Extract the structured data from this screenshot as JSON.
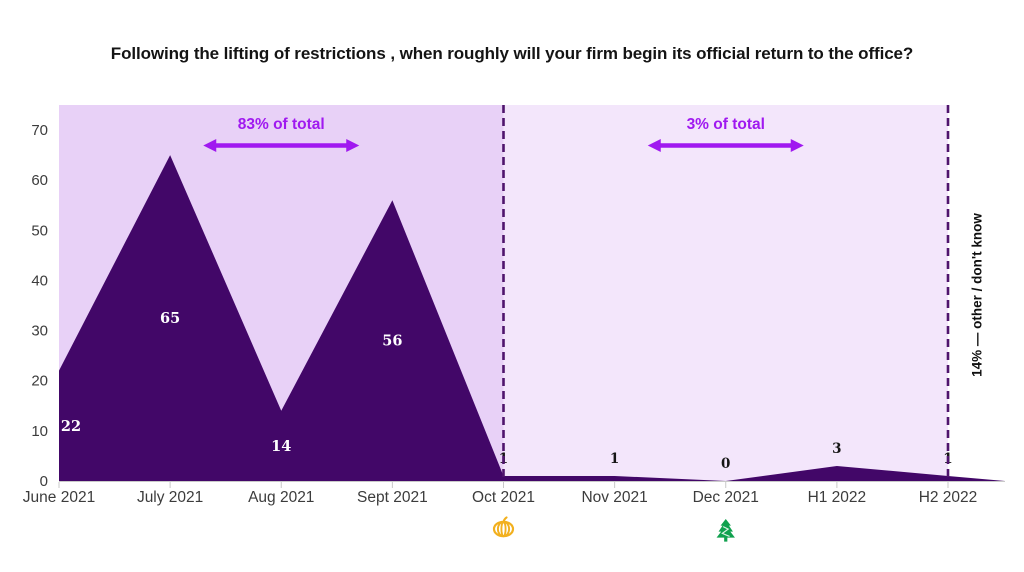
{
  "title": "Following the lifting of restrictions , when roughly will your firm begin its official return to the office?",
  "chart_data": {
    "type": "area",
    "title": "Following the lifting of restrictions , when roughly will your firm begin its official return to the office?",
    "categories": [
      "June 2021",
      "July 2021",
      "Aug 2021",
      "Sept 2021",
      "Oct 2021",
      "Nov 2021",
      "Dec 2021",
      "H1 2022",
      "H2 2022"
    ],
    "values": [
      22,
      65,
      14,
      56,
      1,
      1,
      0,
      3,
      1
    ],
    "xlabel": "",
    "ylabel": "",
    "ylim": [
      0,
      75
    ],
    "yticks": [
      0,
      10,
      20,
      30,
      40,
      50,
      60,
      70
    ],
    "grid": false,
    "legend": "none",
    "area_color": "#420768",
    "axis_label_color": "#3c3c3c",
    "axis_line_color": "#c9c9c9",
    "value_label_inside_color": "#ffffff",
    "value_label_outside_color": "#151515",
    "regions": [
      {
        "label": "83% of total",
        "from": "June 2021",
        "to": "Oct 2021",
        "fill": "#e8d1f7"
      },
      {
        "label": "3% of total",
        "from": "Oct 2021",
        "to": "H2 2022",
        "fill": "#f3e6fb"
      }
    ],
    "annotation_color": "#a019f0",
    "dashed_boundaries": [
      "Oct 2021",
      "H2 2022"
    ],
    "dashed_line_color": "#4f146d",
    "side_note": "14% — other / don't know",
    "markers": [
      {
        "icon": "pumpkin",
        "category": "Oct 2021",
        "color": "#f2b01e"
      },
      {
        "icon": "christmas-tree",
        "category": "Dec 2021",
        "color": "#10a14e"
      }
    ]
  }
}
